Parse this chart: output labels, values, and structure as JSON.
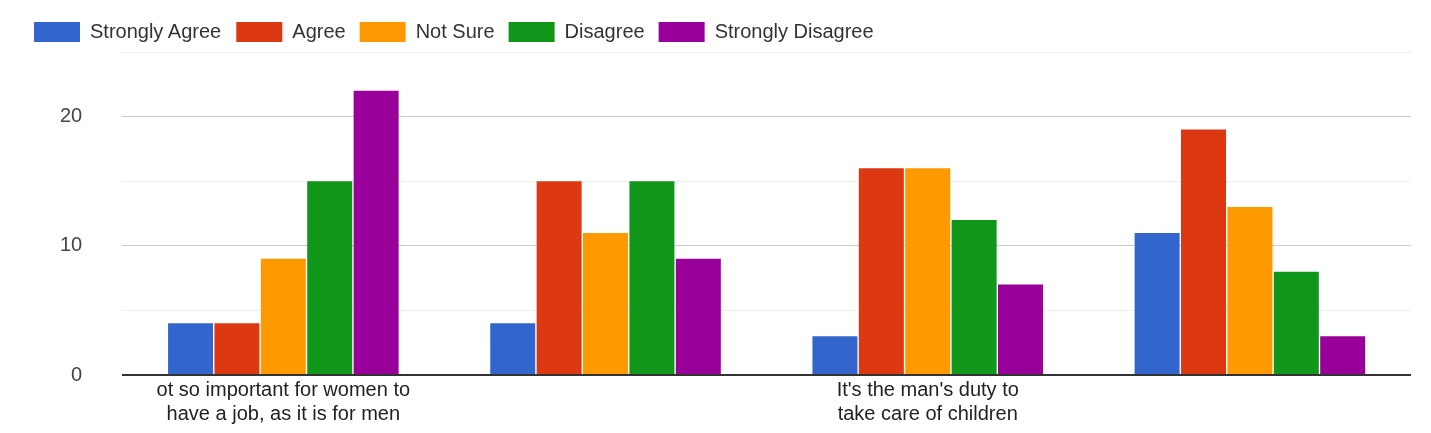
{
  "chart_data": {
    "type": "bar",
    "categories": [
      "ot so important for women to have a job, as it is for men",
      null,
      "It's the man's duty to take care of children",
      null
    ],
    "series": [
      {
        "name": "Strongly Agree",
        "color": "#3366cc",
        "values": [
          4,
          4,
          3,
          11
        ]
      },
      {
        "name": "Agree",
        "color": "#dc3912",
        "values": [
          4,
          15,
          16,
          19
        ]
      },
      {
        "name": "Not Sure",
        "color": "#ff9900",
        "values": [
          9,
          11,
          16,
          13
        ]
      },
      {
        "name": "Disagree",
        "color": "#109618",
        "values": [
          15,
          15,
          12,
          8
        ]
      },
      {
        "name": "Strongly Disagree",
        "color": "#990099",
        "values": [
          22,
          9,
          7,
          3
        ]
      }
    ],
    "ylim": [
      0,
      25
    ],
    "yticks": [
      0,
      {
        "value": 5,
        "label": null
      },
      10,
      {
        "value": 15,
        "label": null
      },
      20,
      {
        "value": 25,
        "label": null
      }
    ],
    "grid": "y",
    "legend": "top left"
  }
}
